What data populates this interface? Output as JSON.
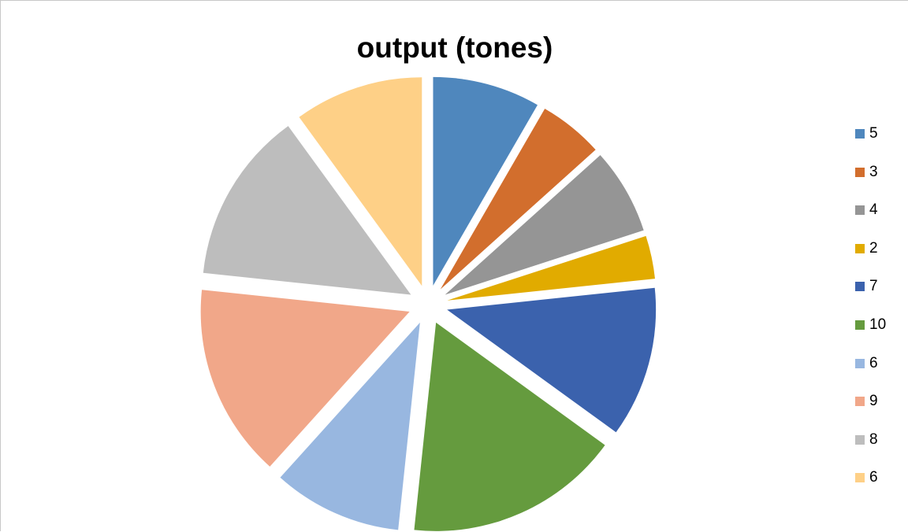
{
  "chart_data": {
    "type": "pie",
    "title": "output (tones)",
    "exploded": true,
    "legend_position": "right",
    "categories": [
      "5",
      "3",
      "4",
      "2",
      "7",
      "10",
      "6",
      "9",
      "8",
      "6"
    ],
    "values": [
      5,
      3,
      4,
      2,
      7,
      10,
      6,
      9,
      8,
      6
    ],
    "colors": [
      "#4f87bd",
      "#d26e2d",
      "#959595",
      "#e1ab00",
      "#3b62ad",
      "#659b3e",
      "#98b7e0",
      "#f1a789",
      "#bdbdbd",
      "#fed087"
    ]
  }
}
